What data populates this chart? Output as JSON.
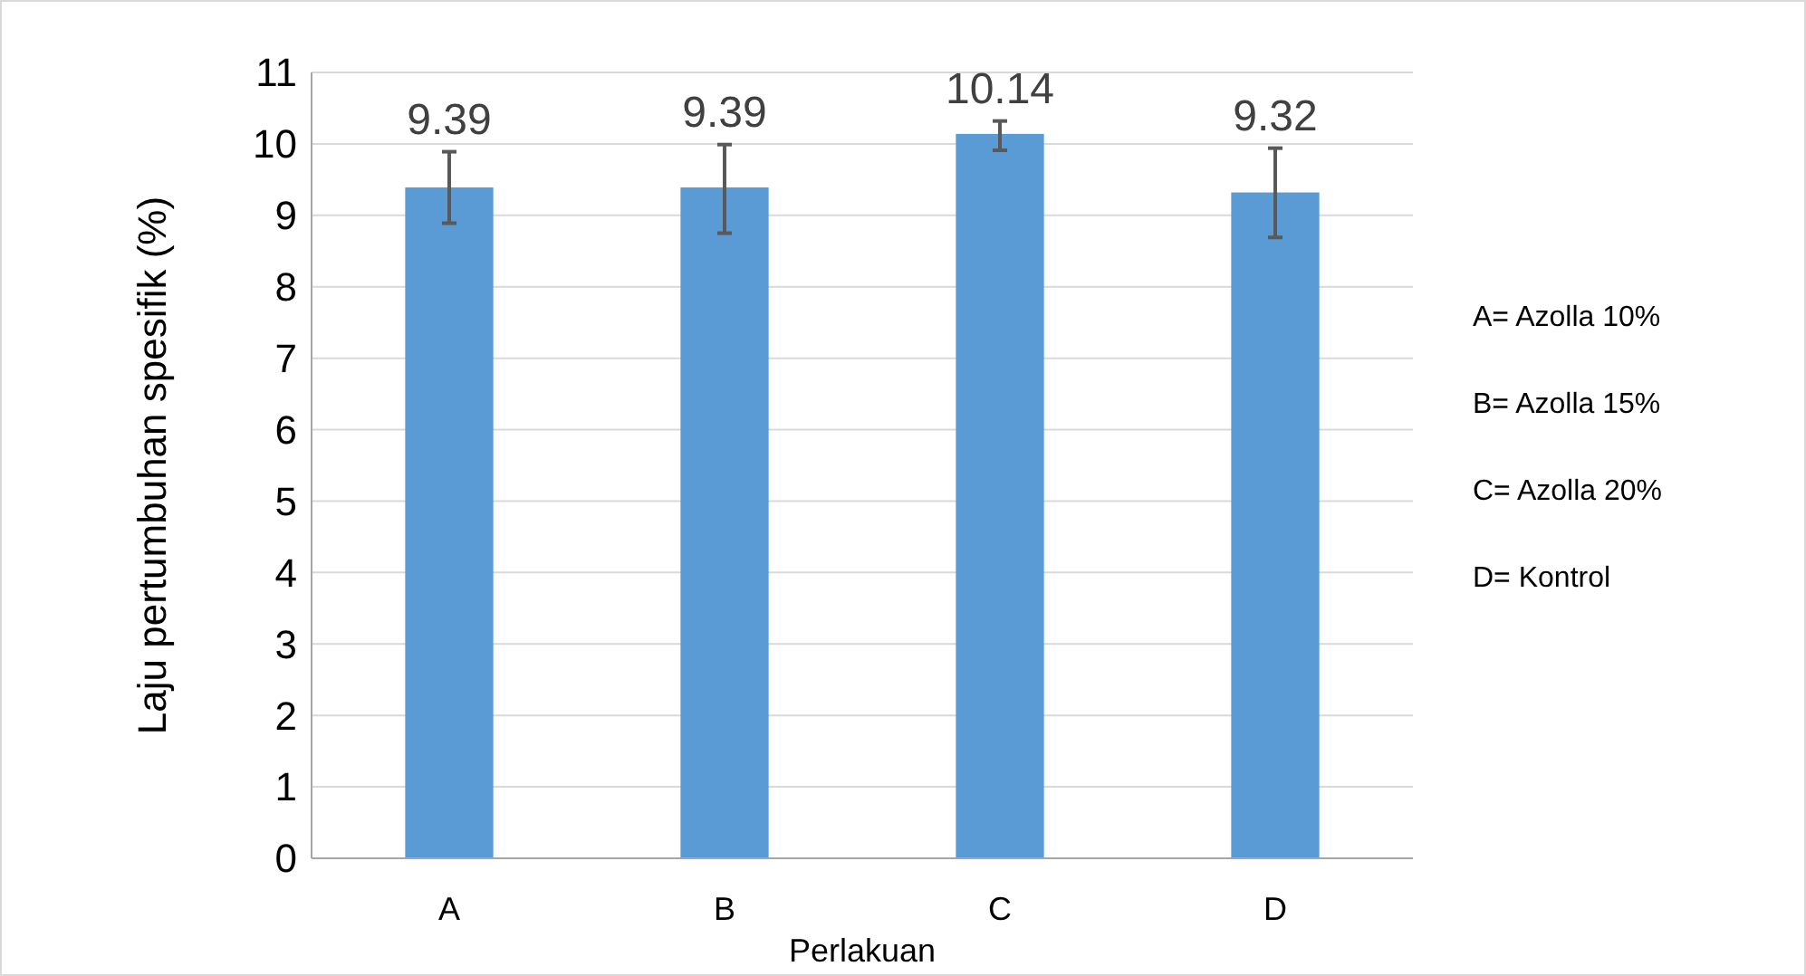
{
  "chart_data": {
    "type": "bar",
    "xlabel": "Perlakuan",
    "ylabel": "Laju pertumbuhan spesifik (%)",
    "categories": [
      "A",
      "B",
      "C",
      "D"
    ],
    "values": [
      9.39,
      9.39,
      10.14,
      9.32
    ],
    "errors": [
      [
        8.89,
        9.89
      ],
      [
        8.75,
        9.99
      ],
      [
        9.91,
        10.32
      ],
      [
        8.69,
        9.94
      ]
    ],
    "color": "#5b9bd5",
    "ylim": [
      0,
      11
    ],
    "yticks": [
      0,
      1,
      2,
      3,
      4,
      5,
      6,
      7,
      8,
      9,
      10,
      11
    ],
    "grid": "y",
    "data_labels": true,
    "annotations": [
      "A= Azolla 10%",
      "B= Azolla 15%",
      "C= Azolla 20%",
      "D= Kontrol"
    ]
  }
}
